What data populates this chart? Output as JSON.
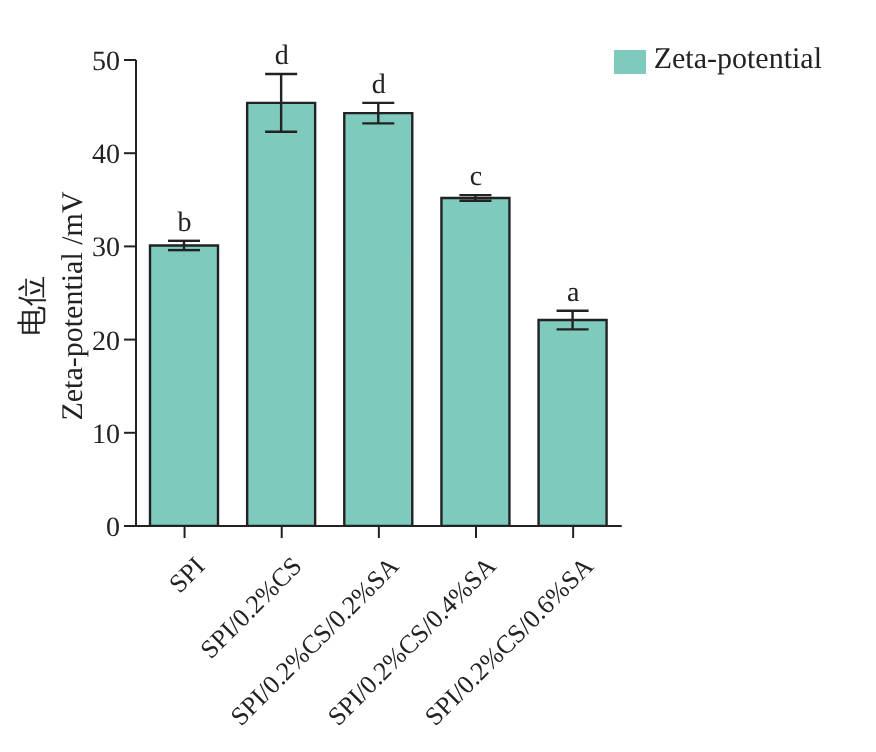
{
  "chart_data": {
    "type": "bar",
    "ylabel": "电位\nZeta-potential /mV",
    "categories": [
      "SPI",
      "SPI/0.2%CS",
      "SPI/0.2%CS/0.2%SA",
      "SPI/0.2%CS/0.4%SA",
      "SPI/0.2%CS/0.6%SA"
    ],
    "series": [
      {
        "name": "Zeta-potential",
        "color": "#7ecabd",
        "values": [
          30.1,
          45.4,
          44.3,
          35.2,
          22.1
        ],
        "errors": [
          0.5,
          3.1,
          1.1,
          0.3,
          1.0
        ]
      }
    ],
    "ylim": [
      0,
      50
    ],
    "yticks": [
      0,
      10,
      20,
      30,
      40,
      50
    ],
    "legend": "top right",
    "annotations": [
      {
        "text": "b",
        "x": "SPI",
        "y": 30.6
      },
      {
        "text": "d",
        "x": "SPI/0.2%CS",
        "y": 48.5
      },
      {
        "text": "d",
        "x": "SPI/0.2%CS/0.2%SA",
        "y": 45.4
      },
      {
        "text": "c",
        "x": "SPI/0.2%CS/0.4%SA",
        "y": 35.5
      },
      {
        "text": "a",
        "x": "SPI/0.2%CS/0.6%SA",
        "y": 23.1
      }
    ]
  }
}
